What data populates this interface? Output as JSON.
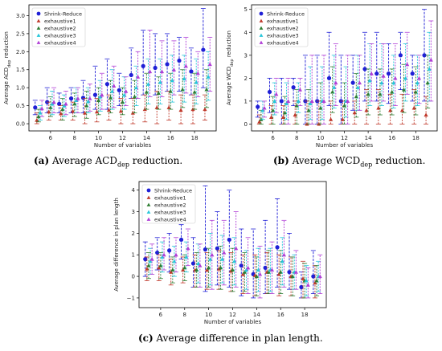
{
  "series_styles": [
    {
      "name": "Shrink-Reduce",
      "color": "#1f1fd6",
      "marker": "circle"
    },
    {
      "name": "exhaustive1",
      "color": "#c0392b",
      "marker": "triangle"
    },
    {
      "name": "exhaustive2",
      "color": "#2e7d32",
      "marker": "triangle"
    },
    {
      "name": "exhaustive3",
      "color": "#26c6da",
      "marker": "triangle"
    },
    {
      "name": "exhaustive4",
      "color": "#b03fd6",
      "marker": "triangle"
    }
  ],
  "captions": [
    {
      "label": "(a)",
      "text_before": "Average ACD",
      "sub": "dep",
      "text_after": " reduction."
    },
    {
      "label": "(b)",
      "text_before": "Average WCD",
      "sub": "dep",
      "text_after": " reduction."
    },
    {
      "label": "(c)",
      "text_before": "Average difference in plan length.",
      "sub": "",
      "text_after": ""
    }
  ],
  "chart_data": [
    {
      "type": "scatter",
      "xlabel": "Number of variables",
      "ylabel": "Average ACD",
      "ylabel_sub": "dep",
      "ylabel_after": " reduction",
      "xlim": [
        4.2,
        19.8
      ],
      "ylim": [
        -0.2,
        3.3
      ],
      "xticks": [
        6,
        8,
        10,
        12,
        14,
        16,
        18
      ],
      "yticks": [
        0.0,
        0.5,
        1.0,
        1.5,
        2.0,
        2.5,
        3.0
      ],
      "ytick_labels": [
        "0.0",
        "0.5",
        "1.0",
        "1.5",
        "2.0",
        "2.5",
        "3.0"
      ],
      "legend": "top-left",
      "x": [
        5,
        6,
        7,
        8,
        9,
        10,
        11,
        12,
        13,
        14,
        15,
        16,
        17,
        18,
        19
      ],
      "series": [
        {
          "name": "Shrink-Reduce",
          "mean": [
            0.45,
            0.6,
            0.55,
            0.7,
            0.72,
            0.8,
            1.1,
            0.93,
            1.35,
            1.6,
            1.55,
            1.65,
            1.75,
            1.45,
            2.05
          ],
          "low": [
            0.25,
            0.3,
            0.3,
            0.3,
            0.3,
            0.4,
            0.4,
            0.5,
            0.7,
            0.8,
            0.8,
            0.9,
            0.9,
            0.8,
            1.0
          ],
          "high": [
            0.65,
            1.0,
            0.85,
            1.0,
            1.2,
            1.6,
            1.8,
            1.4,
            2.1,
            2.6,
            2.5,
            2.5,
            2.4,
            2.1,
            3.2
          ]
        },
        {
          "name": "exhaustive1",
          "mean": [
            0.1,
            0.33,
            0.28,
            0.35,
            0.3,
            0.33,
            0.38,
            0.35,
            0.3,
            0.4,
            0.45,
            0.45,
            0.38,
            0.4,
            0.4
          ],
          "low": [
            0.0,
            0.1,
            0.1,
            0.1,
            0.0,
            0.05,
            0.1,
            0.0,
            0.0,
            0.05,
            0.0,
            0.1,
            0.0,
            0.0,
            0.1
          ],
          "high": [
            0.3,
            0.6,
            0.5,
            0.6,
            0.7,
            0.7,
            0.8,
            0.7,
            0.7,
            0.8,
            0.9,
            0.9,
            0.8,
            0.8,
            0.8
          ]
        },
        {
          "name": "exhaustive2",
          "mean": [
            0.2,
            0.45,
            0.4,
            0.55,
            0.5,
            0.65,
            0.72,
            0.6,
            0.75,
            0.88,
            0.85,
            0.9,
            0.95,
            0.88,
            0.95
          ],
          "low": [
            0.05,
            0.2,
            0.1,
            0.2,
            0.15,
            0.25,
            0.3,
            0.25,
            0.3,
            0.4,
            0.4,
            0.4,
            0.45,
            0.4,
            0.45
          ],
          "high": [
            0.4,
            0.75,
            0.7,
            0.85,
            0.9,
            1.0,
            1.2,
            1.0,
            1.2,
            1.4,
            1.3,
            1.4,
            1.5,
            1.4,
            1.5
          ]
        },
        {
          "name": "exhaustive3",
          "mean": [
            0.3,
            0.55,
            0.5,
            0.65,
            0.62,
            0.75,
            0.9,
            0.8,
            1.0,
            1.1,
            1.15,
            1.2,
            1.25,
            1.15,
            1.3
          ],
          "low": [
            0.1,
            0.25,
            0.2,
            0.3,
            0.3,
            0.35,
            0.4,
            0.4,
            0.5,
            0.55,
            0.55,
            0.6,
            0.6,
            0.55,
            0.65
          ],
          "high": [
            0.5,
            0.9,
            0.8,
            1.0,
            1.0,
            1.2,
            1.5,
            1.3,
            1.6,
            1.8,
            1.8,
            1.9,
            1.9,
            1.8,
            2.0
          ]
        },
        {
          "name": "exhaustive4",
          "mean": [
            0.42,
            0.6,
            0.55,
            0.7,
            0.7,
            0.8,
            1.05,
            0.9,
            1.3,
            1.45,
            1.45,
            1.5,
            1.6,
            1.4,
            1.65
          ],
          "low": [
            0.2,
            0.3,
            0.25,
            0.3,
            0.35,
            0.4,
            0.45,
            0.5,
            0.7,
            0.75,
            0.75,
            0.8,
            0.85,
            0.75,
            0.9
          ],
          "high": [
            0.65,
            1.0,
            0.9,
            1.0,
            1.1,
            1.4,
            1.6,
            1.3,
            2.0,
            2.6,
            2.3,
            2.3,
            2.4,
            2.0,
            2.4
          ]
        }
      ]
    },
    {
      "type": "scatter",
      "xlabel": "Number of variables",
      "ylabel": "Average WCD",
      "ylabel_sub": "dep",
      "ylabel_after": " reduction",
      "xlim": [
        4.2,
        19.8
      ],
      "ylim": [
        -0.3,
        5.2
      ],
      "xticks": [
        6,
        8,
        10,
        12,
        14,
        16,
        18
      ],
      "yticks": [
        0,
        1,
        2,
        3,
        4,
        5
      ],
      "ytick_labels": [
        "0",
        "1",
        "2",
        "3",
        "4",
        "5"
      ],
      "legend": "top-left",
      "x": [
        5,
        6,
        7,
        8,
        9,
        10,
        11,
        12,
        13,
        14,
        15,
        16,
        17,
        18,
        19
      ],
      "series": [
        {
          "name": "Shrink-Reduce",
          "mean": [
            0.75,
            1.4,
            1.0,
            1.6,
            1.0,
            1.0,
            2.0,
            1.0,
            1.8,
            2.4,
            2.2,
            2.2,
            3.0,
            2.2,
            3.0
          ],
          "low": [
            0.3,
            0.5,
            0.0,
            0.8,
            0.0,
            0.0,
            0.8,
            0.0,
            0.6,
            1.0,
            1.0,
            0.9,
            1.5,
            1.0,
            1.0
          ],
          "high": [
            1.0,
            2.0,
            2.0,
            2.0,
            3.0,
            3.0,
            4.0,
            3.0,
            3.0,
            4.0,
            4.0,
            3.5,
            4.0,
            3.0,
            5.0
          ]
        },
        {
          "name": "exhaustive1",
          "mean": [
            0.1,
            0.3,
            0.3,
            0.4,
            0.0,
            0.0,
            0.2,
            0.2,
            0.5,
            0.6,
            0.7,
            0.6,
            0.6,
            0.7,
            0.4
          ],
          "low": [
            0.0,
            0.0,
            0.0,
            0.0,
            0.0,
            0.0,
            0.0,
            0.0,
            0.0,
            0.0,
            0.0,
            0.0,
            0.0,
            0.0,
            0.0
          ],
          "high": [
            0.4,
            0.8,
            0.8,
            1.0,
            1.0,
            1.0,
            1.0,
            1.0,
            1.0,
            1.5,
            1.5,
            1.3,
            1.3,
            1.5,
            1.2
          ]
        },
        {
          "name": "exhaustive2",
          "mean": [
            0.2,
            0.6,
            0.5,
            0.8,
            0.6,
            0.7,
            1.4,
            0.8,
            1.2,
            1.3,
            1.3,
            1.4,
            1.5,
            1.4,
            1.8
          ],
          "low": [
            0.0,
            0.0,
            0.0,
            0.0,
            0.0,
            0.0,
            0.5,
            0.0,
            0.3,
            0.4,
            0.4,
            0.4,
            0.5,
            0.4,
            0.7
          ],
          "high": [
            0.6,
            1.2,
            1.2,
            1.5,
            1.5,
            1.8,
            2.5,
            1.8,
            2.2,
            2.4,
            2.4,
            2.4,
            2.6,
            2.5,
            3.0
          ]
        },
        {
          "name": "exhaustive3",
          "mean": [
            0.6,
            1.0,
            0.9,
            1.0,
            0.9,
            1.0,
            1.6,
            1.0,
            1.6,
            1.9,
            1.8,
            1.8,
            2.0,
            1.8,
            2.4
          ],
          "low": [
            0.2,
            0.4,
            0.2,
            0.5,
            0.2,
            0.2,
            0.7,
            0.3,
            0.6,
            0.8,
            0.8,
            0.7,
            1.0,
            0.8,
            1.0
          ],
          "high": [
            1.0,
            1.8,
            1.8,
            1.8,
            2.5,
            2.5,
            3.0,
            2.5,
            3.0,
            3.5,
            3.5,
            3.0,
            3.5,
            3.0,
            4.0
          ]
        },
        {
          "name": "exhaustive4",
          "mean": [
            0.7,
            1.3,
            1.0,
            1.5,
            1.0,
            1.0,
            1.8,
            1.0,
            1.8,
            2.2,
            2.1,
            2.0,
            2.6,
            2.0,
            2.8
          ],
          "low": [
            0.3,
            0.5,
            0.0,
            0.8,
            0.0,
            0.0,
            0.8,
            0.0,
            0.6,
            1.0,
            1.0,
            0.8,
            1.3,
            0.9,
            1.0
          ],
          "high": [
            1.0,
            2.0,
            2.0,
            2.0,
            3.0,
            3.0,
            3.5,
            3.0,
            3.0,
            3.5,
            3.5,
            3.5,
            4.0,
            3.0,
            4.5
          ]
        }
      ]
    },
    {
      "type": "scatter",
      "xlabel": "Number of variables",
      "ylabel": "Average difference in plan length",
      "ylabel_sub": "",
      "ylabel_after": "",
      "xlim": [
        4.2,
        19.8
      ],
      "ylim": [
        -1.45,
        4.4
      ],
      "xticks": [
        6,
        8,
        10,
        12,
        14,
        16,
        18
      ],
      "yticks": [
        -1,
        0,
        1,
        2,
        3,
        4
      ],
      "ytick_labels": [
        "−1",
        "0",
        "1",
        "2",
        "3",
        "4"
      ],
      "legend": "top-left",
      "x": [
        5,
        6,
        7,
        8,
        9,
        10,
        11,
        12,
        13,
        14,
        15,
        16,
        17,
        18,
        19
      ],
      "series": [
        {
          "name": "Shrink-Reduce",
          "mean": [
            0.8,
            1.1,
            1.2,
            1.7,
            0.6,
            1.25,
            1.3,
            1.7,
            0.5,
            0.1,
            0.4,
            1.35,
            0.2,
            -0.5,
            0.0
          ],
          "low": [
            0.0,
            0.3,
            0.2,
            0.8,
            -0.5,
            -0.7,
            -0.4,
            -0.5,
            -0.9,
            -1.0,
            -0.8,
            -0.5,
            -0.6,
            -1.0,
            -0.8
          ],
          "high": [
            1.6,
            1.8,
            2.0,
            2.4,
            1.8,
            4.2,
            3.0,
            4.0,
            2.2,
            2.2,
            2.6,
            3.6,
            2.0,
            0.2,
            1.2
          ]
        },
        {
          "name": "exhaustive1",
          "mean": [
            0.35,
            0.4,
            0.2,
            0.3,
            0.3,
            0.3,
            0.35,
            0.25,
            0.1,
            0.05,
            0.2,
            0.1,
            0.0,
            -0.1,
            -0.3
          ],
          "low": [
            -0.2,
            -0.2,
            -0.4,
            -0.3,
            -0.5,
            -0.6,
            -0.6,
            -0.7,
            -0.8,
            -0.9,
            -0.8,
            -0.9,
            -0.9,
            -1.0,
            -1.0
          ],
          "high": [
            0.9,
            1.0,
            0.8,
            0.9,
            1.0,
            1.1,
            1.2,
            1.1,
            1.0,
            1.0,
            1.1,
            1.0,
            0.9,
            0.7,
            0.5
          ]
        },
        {
          "name": "exhaustive2",
          "mean": [
            0.5,
            0.5,
            0.3,
            0.4,
            0.3,
            0.4,
            0.4,
            0.3,
            0.2,
            0.0,
            0.2,
            0.2,
            0.0,
            -0.2,
            -0.2
          ],
          "low": [
            -0.1,
            -0.1,
            -0.3,
            -0.2,
            -0.5,
            -0.5,
            -0.6,
            -0.7,
            -0.7,
            -0.9,
            -0.8,
            -0.8,
            -0.9,
            -1.0,
            -0.9
          ],
          "high": [
            1.1,
            1.1,
            0.9,
            1.0,
            1.1,
            1.3,
            1.4,
            1.3,
            1.1,
            0.9,
            1.2,
            1.2,
            0.9,
            0.6,
            0.5
          ]
        },
        {
          "name": "exhaustive3",
          "mean": [
            0.7,
            0.9,
            0.7,
            0.9,
            0.6,
            0.8,
            0.8,
            0.7,
            0.3,
            0.3,
            0.3,
            0.7,
            0.2,
            -0.2,
            0.0
          ],
          "low": [
            0.1,
            0.2,
            0.0,
            0.2,
            -0.3,
            -0.4,
            -0.3,
            -0.4,
            -0.6,
            -0.7,
            -0.7,
            -0.4,
            -0.6,
            -0.9,
            -0.7
          ],
          "high": [
            1.3,
            1.6,
            1.4,
            1.6,
            1.5,
            2.0,
            1.9,
            1.8,
            1.2,
            1.3,
            1.3,
            1.8,
            1.0,
            0.5,
            0.7
          ]
        },
        {
          "name": "exhaustive4",
          "mean": [
            0.8,
            1.0,
            1.0,
            1.3,
            0.5,
            1.0,
            1.1,
            1.3,
            0.4,
            0.1,
            0.3,
            1.0,
            0.2,
            -0.4,
            0.0
          ],
          "low": [
            0.1,
            0.3,
            0.2,
            0.5,
            -0.5,
            -0.6,
            -0.4,
            -0.5,
            -0.8,
            -1.0,
            -0.8,
            -0.5,
            -0.6,
            -1.0,
            -0.8
          ],
          "high": [
            1.5,
            1.8,
            1.8,
            2.2,
            1.5,
            2.6,
            2.6,
            3.0,
            1.8,
            1.4,
            1.6,
            2.6,
            1.2,
            0.4,
            1.0
          ]
        }
      ]
    }
  ]
}
